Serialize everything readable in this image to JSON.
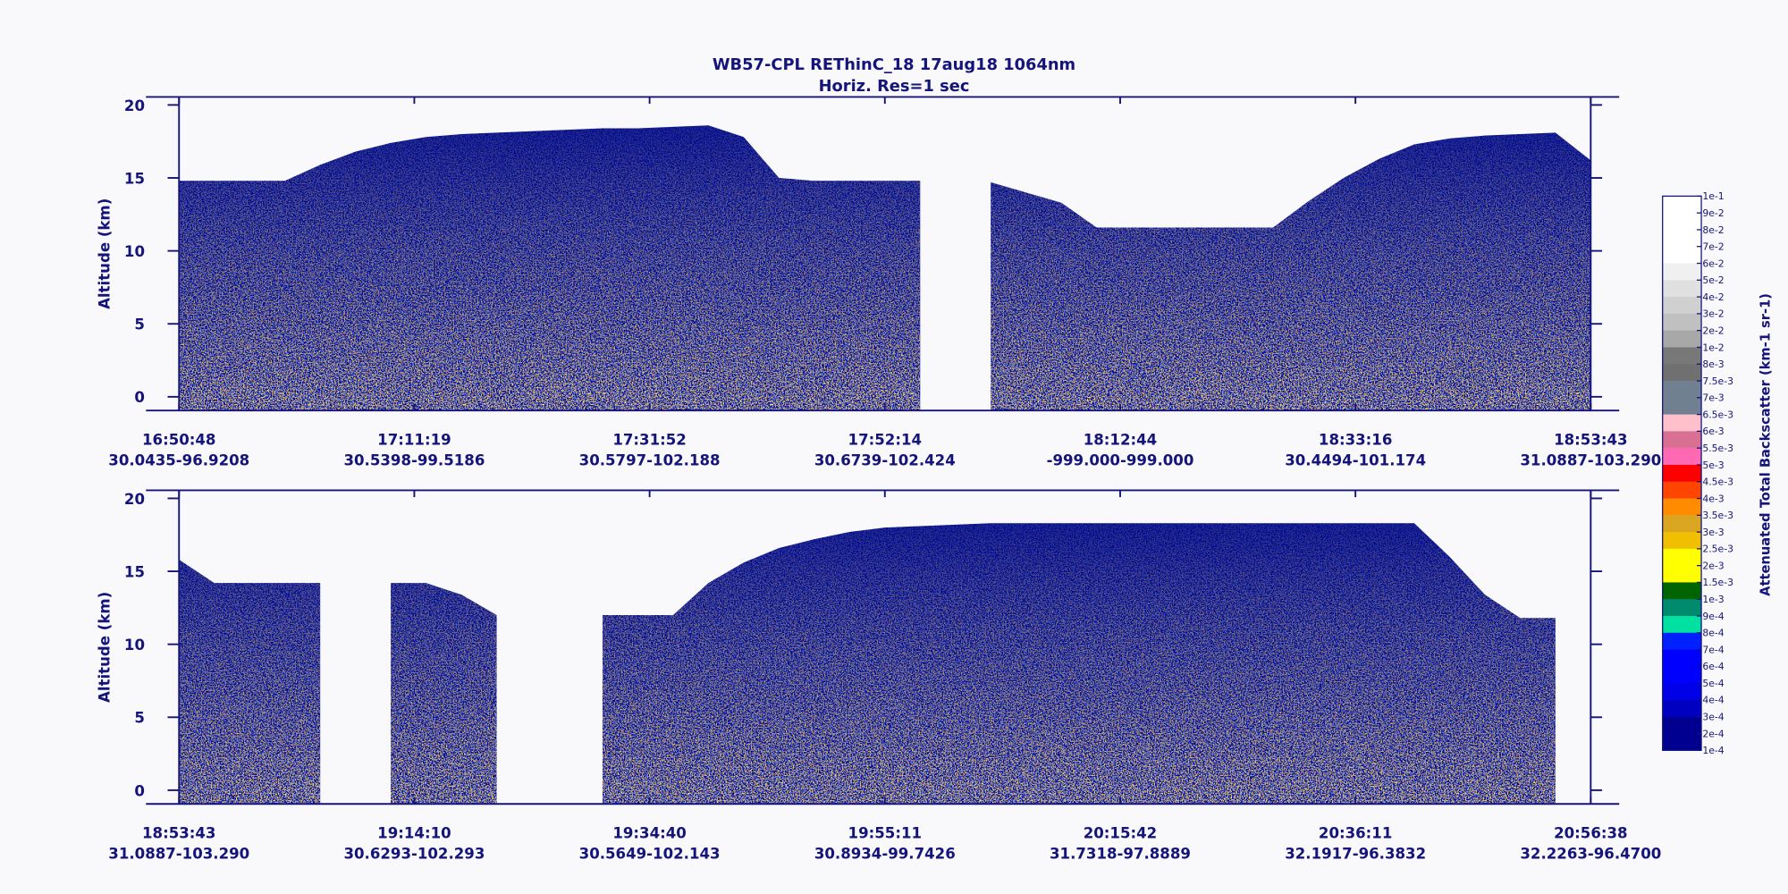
{
  "title": "WB57-CPL  REThinC_18  17aug18  1064nm",
  "subtitle": "Horiz. Res=1 sec",
  "chart_data": [
    {
      "type": "curtain",
      "ylabel": "Altitude (km)",
      "ylim": [
        -0.94,
        20.55
      ],
      "yticks": [
        0,
        5,
        10,
        15,
        20
      ],
      "color": "#000b8c",
      "x_tick_times": [
        "16:50:48",
        "17:11:19",
        "17:31:52",
        "17:52:14",
        "18:12:44",
        "18:33:16",
        "18:53:43"
      ],
      "x_tick_locations": [
        "30.0435-96.9208",
        "30.5398-99.5186",
        "30.5797-102.188",
        "30.6739-102.424",
        "-999.000-999.000",
        "30.4494-101.174",
        "31.0887-103.290"
      ],
      "signal_top": [
        14.8,
        14.8,
        14.8,
        14.8,
        15.9,
        16.8,
        17.4,
        17.8,
        18.0,
        18.1,
        18.2,
        18.3,
        18.4,
        18.4,
        18.5,
        18.6,
        17.8,
        15.0,
        14.8,
        14.8,
        14.8,
        14.8,
        null,
        14.7,
        14.0,
        13.3,
        11.6,
        11.6,
        11.6,
        11.6,
        11.6,
        11.6,
        13.4,
        15.0,
        16.3,
        17.3,
        17.7,
        17.9,
        18.0,
        18.1,
        16.2
      ]
    },
    {
      "type": "curtain",
      "ylabel": "Altitude (km)",
      "ylim": [
        -0.94,
        20.55
      ],
      "yticks": [
        0,
        5,
        10,
        15,
        20
      ],
      "color": "#000b8c",
      "x_tick_times": [
        "18:53:43",
        "19:14:10",
        "19:34:40",
        "19:55:11",
        "20:15:42",
        "20:36:11",
        "20:56:38"
      ],
      "x_tick_locations": [
        "31.0887-103.290",
        "30.6293-102.293",
        "30.5649-102.143",
        "30.8934-99.7426",
        "31.7318-97.8889",
        "32.1917-96.3832",
        "32.2263-96.4700"
      ],
      "signal_top": [
        15.8,
        14.2,
        14.2,
        14.2,
        14.2,
        null,
        14.2,
        14.2,
        13.4,
        12.0,
        null,
        null,
        12.0,
        12.0,
        12.0,
        14.2,
        15.6,
        16.6,
        17.2,
        17.7,
        18.0,
        18.1,
        18.2,
        18.3,
        18.3,
        18.3,
        18.3,
        18.3,
        18.3,
        18.3,
        18.3,
        18.3,
        18.3,
        18.3,
        18.3,
        18.3,
        16.0,
        13.4,
        11.8,
        11.8,
        null
      ]
    }
  ],
  "colorbar": {
    "label": "Attenuated Total Backscatter (km-1 sr-1)",
    "labels": [
      "1e-1",
      "9e-2",
      "8e-2",
      "7e-2",
      "6e-2",
      "5e-2",
      "4e-2",
      "3e-2",
      "2e-2",
      "1e-2",
      "8e-3",
      "7.5e-3",
      "7e-3",
      "6.5e-3",
      "6e-3",
      "5.5e-3",
      "5e-3",
      "4.5e-3",
      "4e-3",
      "3.5e-3",
      "3e-3",
      "2.5e-3",
      "2e-3",
      "1.5e-3",
      "1e-3",
      "9e-4",
      "8e-4",
      "7e-4",
      "6e-4",
      "5e-4",
      "4e-4",
      "3e-4",
      "2e-4",
      "1e-4"
    ],
    "colors": [
      "#ffffff",
      "#ffffff",
      "#ffffff",
      "#ffffff",
      "#f0f0f0",
      "#e0e0e0",
      "#d0d0d0",
      "#c0c0c0",
      "#a8a8a8",
      "#787878",
      "#707070",
      "#708090",
      "#708090",
      "#ffc0cb",
      "#d87093",
      "#ff69b4",
      "#ff0000",
      "#ff4500",
      "#ff8c00",
      "#daa520",
      "#f0c000",
      "#ffff00",
      "#ffff00",
      "#006400",
      "#008b6e",
      "#00e0a0",
      "#0020ff",
      "#0000ff",
      "#0000ff",
      "#0000e8",
      "#0000c0",
      "#000090",
      "#000090"
    ]
  }
}
